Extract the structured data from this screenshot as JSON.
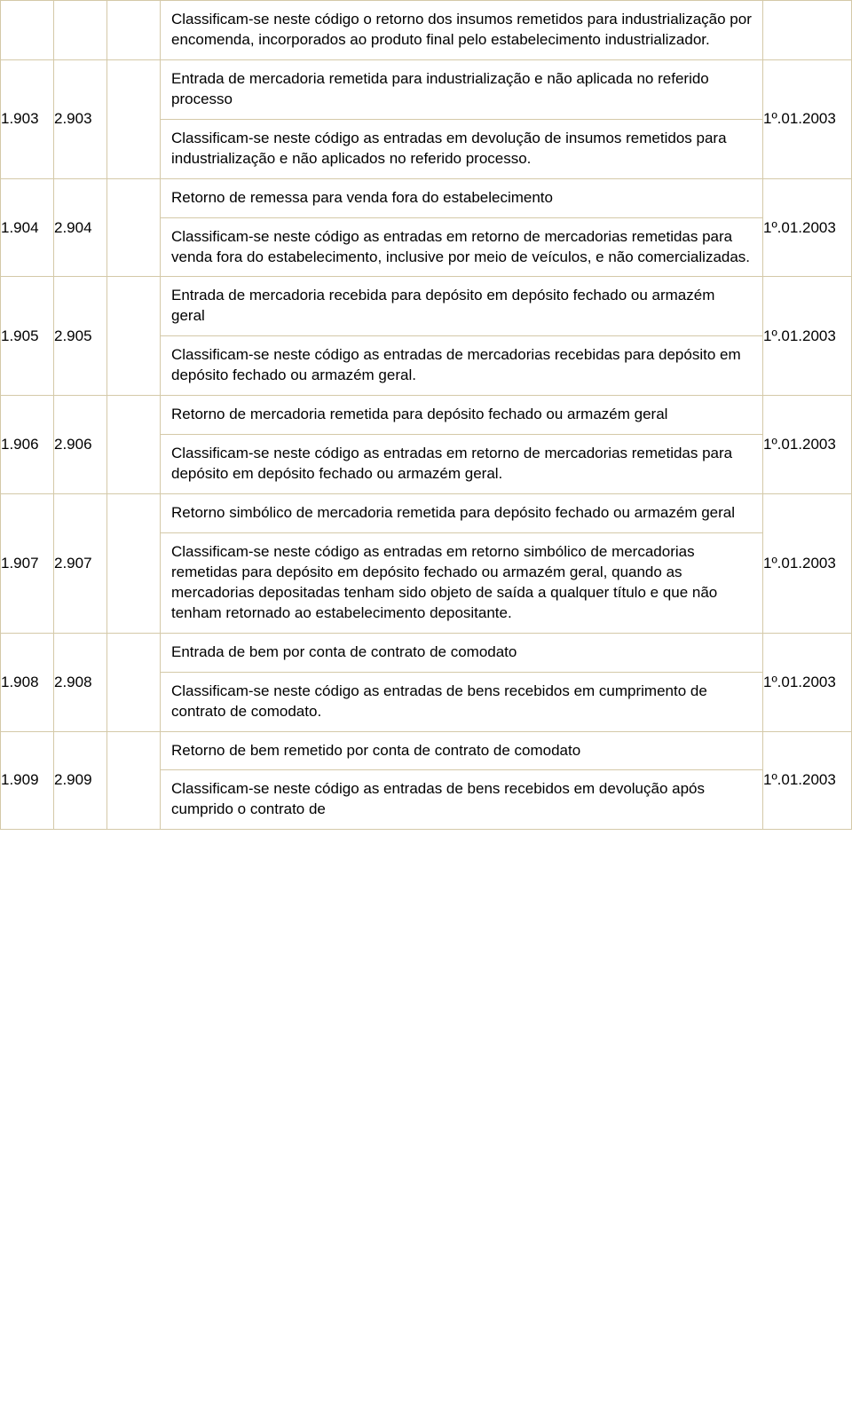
{
  "rows": [
    {
      "c1": "",
      "c2": "",
      "title": "",
      "desc": "Classificam-se neste código o retorno dos insumos remetidos para industrialização por encomenda, incorporados ao produto final pelo estabelecimento industrializador.",
      "date": ""
    },
    {
      "c1": "1.903",
      "c2": "2.903",
      "title": "Entrada de mercadoria remetida para industrialização e não aplicada no referido processo",
      "desc": "Classificam-se neste código as entradas em devolução de insumos remetidos para industrialização e não aplicados no referido processo.",
      "date": "1º.01.2003"
    },
    {
      "c1": "1.904",
      "c2": "2.904",
      "title": "Retorno de remessa para venda fora do estabelecimento",
      "desc": "Classificam-se neste código as entradas em retorno de mercadorias remetidas para venda fora do estabelecimento, inclusive por meio de veículos, e não comercializadas.",
      "date": "1º.01.2003"
    },
    {
      "c1": "1.905",
      "c2": "2.905",
      "title": "Entrada de mercadoria recebida para depósito em depósito fechado ou armazém geral",
      "desc": "Classificam-se neste código as entradas de mercadorias recebidas para depósito em depósito fechado ou armazém geral.",
      "date": "1º.01.2003"
    },
    {
      "c1": "1.906",
      "c2": "2.906",
      "title": "Retorno de mercadoria remetida para depósito fechado ou armazém geral",
      "desc": "Classificam-se neste código as entradas em retorno de mercadorias remetidas para depósito em depósito fechado ou armazém geral.",
      "date": "1º.01.2003"
    },
    {
      "c1": "1.907",
      "c2": "2.907",
      "title": "Retorno simbólico de mercadoria remetida para depósito fechado ou armazém geral",
      "desc": "Classificam-se neste código as entradas em retorno simbólico de mercadorias remetidas para depósito em depósito fechado ou armazém geral, quando as mercadorias depositadas tenham sido objeto de saída a qualquer título e que não tenham retornado ao estabelecimento depositante.",
      "date": "1º.01.2003"
    },
    {
      "c1": "1.908",
      "c2": "2.908",
      "title": "Entrada de bem por conta de contrato de comodato",
      "desc": "Classificam-se neste código as entradas de bens recebidos em cumprimento de contrato de comodato.",
      "date": "1º.01.2003"
    },
    {
      "c1": "1.909",
      "c2": "2.909",
      "title": "Retorno de bem remetido por conta de contrato de comodato",
      "desc": "Classificam-se neste código as entradas de bens recebidos em devolução após cumprido o contrato de",
      "date": "1º.01.2003"
    }
  ]
}
